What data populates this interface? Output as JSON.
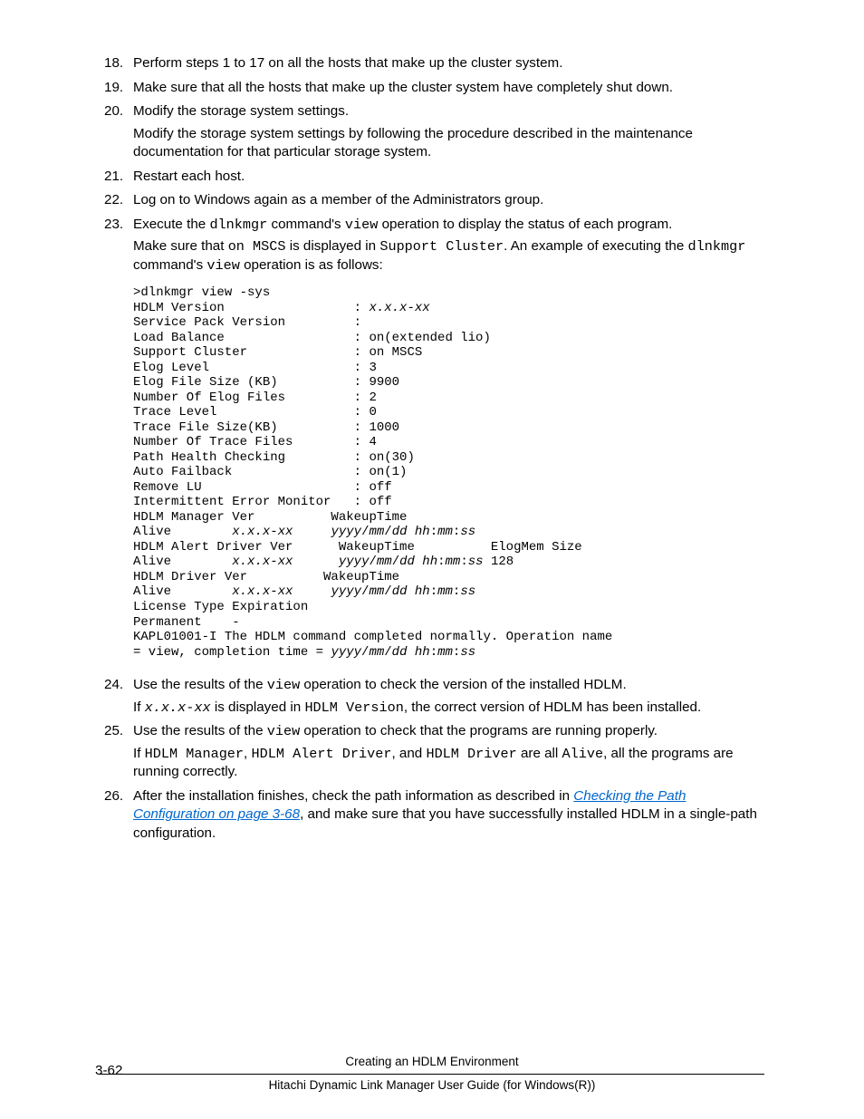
{
  "page_number": "3-62",
  "footer": {
    "line1": "Creating an HDLM Environment",
    "line2": "Hitachi Dynamic Link Manager User Guide (for Windows(R))"
  },
  "link": {
    "text": "Checking the Path Configuration on page 3-68"
  },
  "steps": [
    {
      "num": "18",
      "text": "Perform steps 1 to 17 on all the hosts that make up the cluster system."
    },
    {
      "num": "19",
      "text": "Make sure that all the hosts that make up the cluster system have completely shut down."
    },
    {
      "num": "20",
      "text": "Modify the storage system settings.",
      "para": "Modify the storage system settings by following the procedure described in the maintenance documentation for that particular storage system."
    },
    {
      "num": "21",
      "text": "Restart each host."
    },
    {
      "num": "22",
      "text": "Log on to Windows again as a member of the Administrators group."
    },
    {
      "num": "23",
      "frag": {
        "a": "Execute the ",
        "b": "dlnkmgr",
        "c": " command's ",
        "d": "view",
        "e": " operation to display the status of each program."
      },
      "para_frag": {
        "a": "Make sure that ",
        "b": "on MSCS",
        "c": " is displayed in ",
        "d": "Support Cluster",
        "e": ". An example of executing the ",
        "f": "dlnkmgr",
        "g": " command's ",
        "h": "view",
        "i": " operation is as follows:"
      }
    },
    {
      "num": "24",
      "frag": {
        "a": "Use the results of the ",
        "b": "view",
        "c": " operation to check the version of the installed HDLM."
      },
      "para_frag": {
        "a": "If ",
        "b": "x.x.x-xx",
        "c": " is displayed in ",
        "d": "HDLM Version",
        "e": ", the correct version of HDLM has been installed."
      }
    },
    {
      "num": "25",
      "frag": {
        "a": "Use the results of the ",
        "b": "view",
        "c": " operation to check that the programs are running properly."
      },
      "para_frag": {
        "a": "If ",
        "b": "HDLM Manager",
        "c": ", ",
        "d": "HDLM Alert Driver",
        "e": ", and ",
        "f": "HDLM Driver",
        "g": " are all ",
        "h": "Alive",
        "i": ", all the programs are running correctly."
      }
    },
    {
      "num": "26",
      "frag": {
        "a": "After the installation finishes, check the path information as described in ",
        "c": ", and make sure that you have successfully installed HDLM in a single-path configuration."
      }
    }
  ],
  "code": {
    "l01": ">dlnkmgr view -sys",
    "l02a": "HDLM Version                 : ",
    "l02b": "x.x.x-xx",
    "l03": "Service Pack Version         :",
    "l04": "Load Balance                 : on(extended lio)",
    "l05": "Support Cluster              : on MSCS",
    "l06": "Elog Level                   : 3",
    "l07": "Elog File Size (KB)          : 9900",
    "l08": "Number Of Elog Files         : 2",
    "l09": "Trace Level                  : 0",
    "l10": "Trace File Size(KB)          : 1000",
    "l11": "Number Of Trace Files        : 4",
    "l12": "Path Health Checking         : on(30)",
    "l13": "Auto Failback                : on(1)",
    "l14": "Remove LU                    : off",
    "l15": "Intermittent Error Monitor   : off",
    "l16": "HDLM Manager Ver          WakeupTime",
    "l17a": "Alive        ",
    "l17b": "x.x.x-xx",
    "l17c": "     ",
    "l17d": "yyyy",
    "l17e": "/",
    "l17f": "mm",
    "l17g": "/",
    "l17h": "dd hh",
    "l17i": ":",
    "l17j": "mm",
    "l17k": ":",
    "l17l": "ss",
    "l18": "HDLM Alert Driver Ver      WakeupTime          ElogMem Size",
    "l19a": "Alive        ",
    "l19b": "x.x.x-xx",
    "l19c": "      ",
    "l19d": "yyyy",
    "l19e": "/",
    "l19f": "mm",
    "l19g": "/",
    "l19h": "dd hh",
    "l19i": ":",
    "l19j": "mm",
    "l19k": ":",
    "l19l": "ss",
    "l19m": " 128",
    "l20": "HDLM Driver Ver          WakeupTime",
    "l21a": "Alive        ",
    "l21b": "x.x.x-xx",
    "l21c": "     ",
    "l21d": "yyyy",
    "l21e": "/",
    "l21f": "mm",
    "l21g": "/",
    "l21h": "dd hh",
    "l21i": ":",
    "l21j": "mm",
    "l21k": ":",
    "l21l": "ss",
    "l22": "License Type Expiration",
    "l23": "Permanent    -",
    "l24": "KAPL01001-I The HDLM command completed normally. Operation name",
    "l25a": "= view, completion time = ",
    "l25b": "yyyy",
    "l25c": "/",
    "l25d": "mm",
    "l25e": "/",
    "l25f": "dd hh",
    "l25g": ":",
    "l25h": "mm",
    "l25i": ":",
    "l25j": "ss"
  }
}
